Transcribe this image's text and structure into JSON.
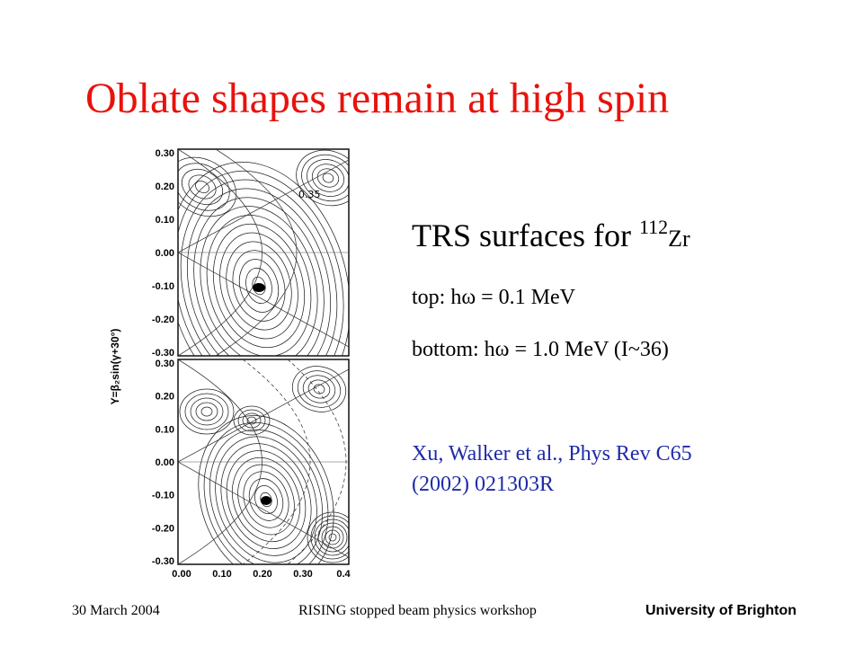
{
  "slide": {
    "title": "Oblate shapes remain at high spin",
    "heading_main": "TRS surfaces for ",
    "heading_mass": "112",
    "heading_element": "Zr",
    "line_top": "top: hω = 0.1 MeV",
    "line_bottom": "bottom: hω = 1.0 MeV (I~36)",
    "reference_1": "Xu, Walker et al., Phys Rev C65",
    "reference_2": "(2002) 021303R"
  },
  "figure": {
    "ylabel": "Y=β₂sin(γ+30°)",
    "yticks_top": [
      "0.30",
      "0.20",
      "0.10",
      "0.00",
      "-0.10",
      "-0.20",
      "-0.30"
    ],
    "yticks_bottom": [
      "0.30",
      "0.20",
      "0.10",
      "0.00",
      "-0.10",
      "-0.20",
      "-0.30"
    ],
    "xticks": [
      "0.00",
      "0.10",
      "0.20",
      "0.30",
      "0.4"
    ],
    "contour_label": "0.35"
  },
  "footer": {
    "date": "30 March 2004",
    "event": "RISING stopped beam physics workshop",
    "institution": "University of Brighton"
  },
  "colors": {
    "title": "#e8120c",
    "reference": "#1f2ba8"
  }
}
